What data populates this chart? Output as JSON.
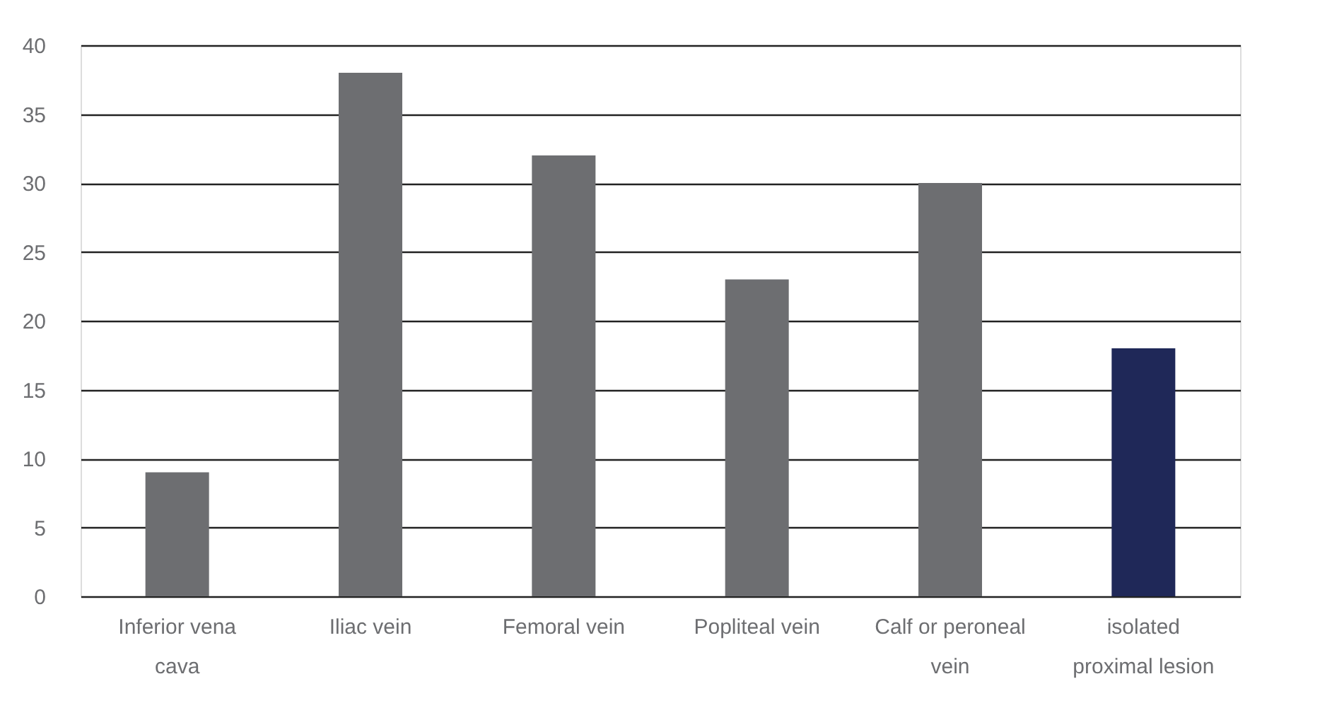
{
  "chart_data": {
    "type": "bar",
    "categories": [
      "Inferior vena cava",
      "Iliac vein",
      "Femoral vein",
      "Popliteal vein",
      "Calf or peroneal vein",
      "isolated proximal lesion"
    ],
    "values": [
      9,
      38,
      32,
      23,
      30,
      18
    ],
    "colors": [
      "#6d6e71",
      "#6d6e71",
      "#6d6e71",
      "#6d6e71",
      "#6d6e71",
      "#1f2858"
    ],
    "ylim": [
      0,
      40
    ],
    "yticks": [
      0,
      5,
      10,
      15,
      20,
      25,
      30,
      35,
      40
    ],
    "grid": "y"
  }
}
